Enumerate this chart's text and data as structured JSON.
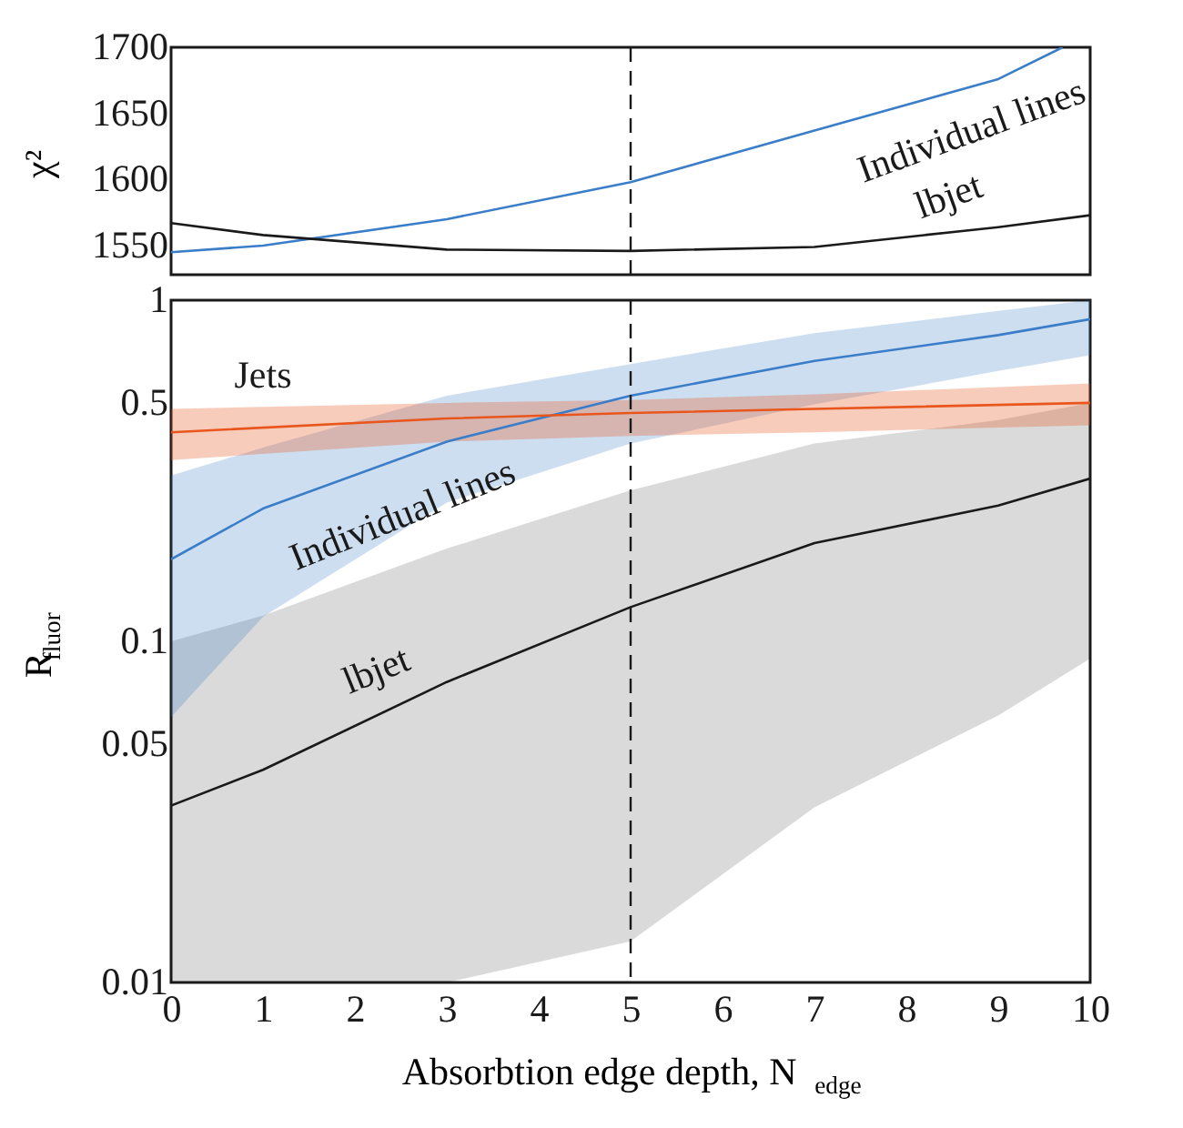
{
  "chart_data": [
    {
      "type": "line",
      "ylabel": "χ²",
      "xlim": [
        0,
        10
      ],
      "xticks": [
        0,
        1,
        2,
        3,
        4,
        5,
        6,
        7,
        8,
        9,
        10
      ],
      "ylim": [
        1528,
        1700
      ],
      "yticks": [
        1550,
        1600,
        1650,
        1700
      ],
      "tick_labels": "y",
      "grid": false,
      "legend": false,
      "series": [
        {
          "name": "Individual lines",
          "color": "#3a7dc9",
          "x": [
            0,
            1,
            3,
            5,
            7,
            9,
            9.7
          ],
          "values": [
            1545,
            1550,
            1570,
            1598,
            1637,
            1676,
            1700
          ]
        },
        {
          "name": "lbjet",
          "color": "#1a1a1a",
          "x": [
            0,
            1,
            3,
            5,
            7,
            9,
            10
          ],
          "values": [
            1567,
            1558,
            1547,
            1546,
            1549,
            1564,
            1573
          ]
        }
      ],
      "ref_lines": [
        {
          "axis": "x",
          "value": 5,
          "line_style": "dashed",
          "color": "#1a1a1a"
        }
      ]
    },
    {
      "type": "line",
      "xlabel": "Absorbtion edge depth, N$_{edge}$",
      "ylabel": "R$_{fluor}$",
      "xlim": [
        0,
        10
      ],
      "xticks": [
        0,
        1,
        2,
        3,
        4,
        5,
        6,
        7,
        8,
        9,
        10
      ],
      "ylim": [
        0.01,
        1
      ],
      "yticks": [
        0.01,
        0.05,
        0.1,
        0.5,
        1
      ],
      "log": true,
      "grid": false,
      "legend": false,
      "series": [
        {
          "name": "lbjet",
          "color": "#1a1a1a",
          "x": [
            0,
            1,
            3,
            5,
            7,
            9,
            10
          ],
          "values": [
            0.033,
            0.042,
            0.076,
            0.126,
            0.194,
            0.25,
            0.3
          ],
          "lower": [
            0.01,
            0.01,
            0.01,
            0.0132,
            0.0326,
            0.0606,
            0.089
          ],
          "upper": [
            0.1,
            0.119,
            0.187,
            0.277,
            0.38,
            0.445,
            0.5
          ]
        },
        {
          "name": "Individual lines",
          "color": "#3a7dc9",
          "x": [
            0,
            1,
            3,
            5,
            7,
            9,
            10
          ],
          "values": [
            0.174,
            0.245,
            0.385,
            0.525,
            0.664,
            0.79,
            0.88
          ],
          "lower": [
            0.06,
            0.118,
            0.255,
            0.38,
            0.495,
            0.62,
            0.69
          ],
          "upper": [
            0.306,
            0.37,
            0.525,
            0.65,
            0.8,
            0.93,
            1.0
          ]
        },
        {
          "name": "Jets",
          "color": "#e8561e",
          "x": [
            0,
            3,
            5,
            7,
            10
          ],
          "values": [
            0.41,
            0.45,
            0.467,
            0.48,
            0.5
          ],
          "lower": [
            0.34,
            0.385,
            0.4,
            0.41,
            0.43
          ],
          "upper": [
            0.48,
            0.5,
            0.51,
            0.53,
            0.57
          ]
        }
      ],
      "ref_lines": [
        {
          "axis": "x",
          "value": 5,
          "line_style": "dashed",
          "color": "#1a1a1a"
        }
      ]
    }
  ]
}
